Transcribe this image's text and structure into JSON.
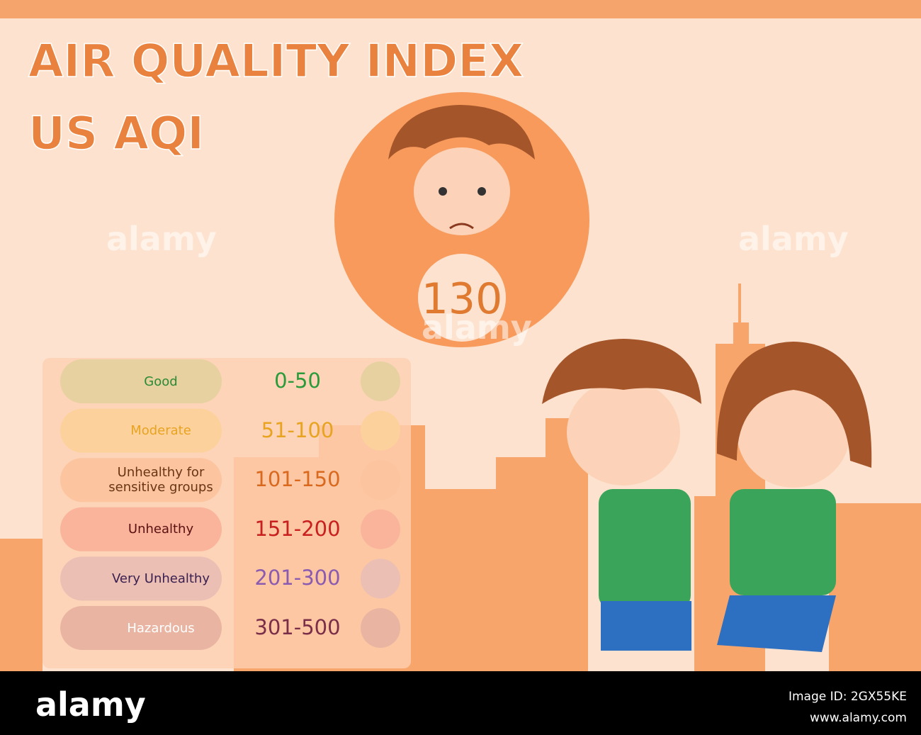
{
  "header": {
    "title": "AIR QUALITY INDEX",
    "subtitle": "US AQI"
  },
  "current": {
    "value": 130,
    "color": "#f79a5c"
  },
  "levels": [
    {
      "label": "Good",
      "range": "0-50",
      "color": "#8fd660",
      "text_color": "#2a9a3a",
      "label_color": "#2a8a35"
    },
    {
      "label": "Moderate",
      "range": "51-100",
      "color": "#f7d84e",
      "text_color": "#e8a321",
      "label_color": "#e8a321"
    },
    {
      "label": "Unhealthy for sensitive groups",
      "range": "101-150",
      "color": "#f7955a",
      "text_color": "#d9691f",
      "label_color": "#6a3515"
    },
    {
      "label": "Unhealthy",
      "range": "151-200",
      "color": "#f04848",
      "text_color": "#c81f1f",
      "label_color": "#5a1010"
    },
    {
      "label": "Very Unhealthy",
      "range": "201-300",
      "color": "#a57cc3",
      "text_color": "#8a5bb0",
      "label_color": "#3a2050"
    },
    {
      "label": "Hazardous",
      "range": "301-500",
      "color": "#9b4e6a",
      "text_color": "#7a2e48",
      "label_color": "#ffffff"
    }
  ],
  "watermark": "alamy",
  "footer": {
    "logo": "alamy",
    "image_id": "Image ID: 2GX55KE",
    "url": "www.alamy.com"
  }
}
